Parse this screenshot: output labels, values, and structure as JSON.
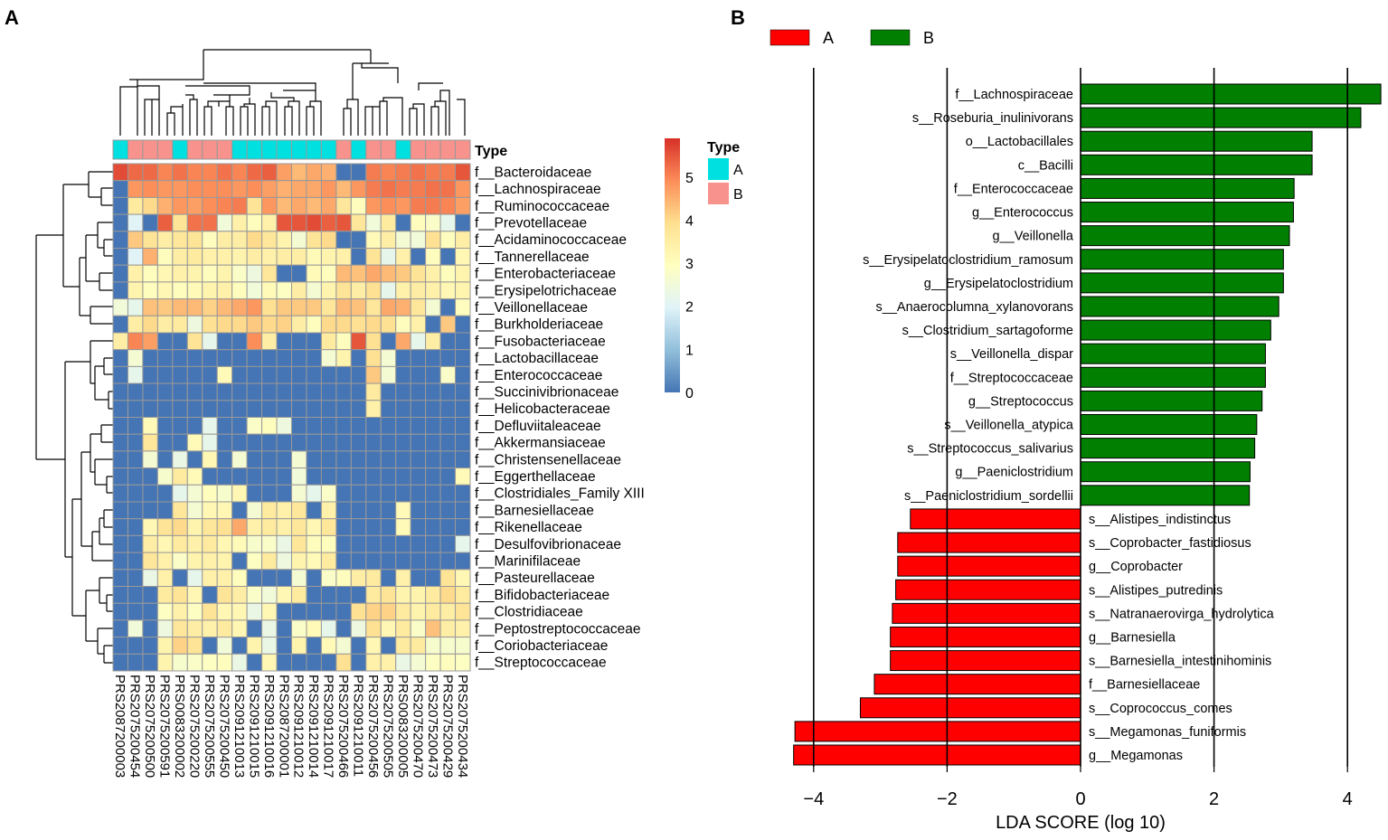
{
  "panel_labels": {
    "a": "A",
    "b": "B"
  },
  "chart_data": [
    {
      "type": "heatmap",
      "annotation_label": "Type",
      "legend": {
        "title": "Type",
        "items": [
          {
            "label": "A",
            "color": "#00e0e0"
          },
          {
            "label": "B",
            "color": "#f8928c"
          }
        ]
      },
      "colorbar_ticks": [
        "0",
        "1",
        "2",
        "3",
        "4",
        "5"
      ],
      "value_range": [
        0,
        5.9
      ],
      "colors": [
        "#4575b4",
        "#91bfdb",
        "#e0f3f8",
        "#ffffbf",
        "#fee090",
        "#fc8d59",
        "#d73027"
      ],
      "samples": [
        "PRS2087200003",
        "PRS2075200454",
        "PRS2075200500",
        "PRS2075200591",
        "PRS0083200002",
        "PRS2075200220",
        "PRS2075200555",
        "PRS2075200450",
        "PRS2091210013",
        "PRS2091210015",
        "PRS2091210016",
        "PRS2087200001",
        "PRS2091210012",
        "PRS2091210014",
        "PRS2091210017",
        "PRS2075200466",
        "PRS2091210011",
        "PRS2075200456",
        "PRS2075200505",
        "PRS0083200005",
        "PRS2075200470",
        "PRS2075200473",
        "PRS2075200429",
        "PRS2075200434"
      ],
      "types": [
        "A",
        "B",
        "B",
        "B",
        "A",
        "B",
        "B",
        "B",
        "A",
        "A",
        "A",
        "A",
        "A",
        "A",
        "A",
        "B",
        "A",
        "B",
        "B",
        "A",
        "B",
        "B",
        "B",
        "B"
      ],
      "taxa": [
        "f__Bacteroidaceae",
        "f__Lachnospiraceae",
        "f__Ruminococcaceae",
        "f__Prevotellaceae",
        "f__Acidaminococcaceae",
        "f__Tannerellaceae",
        "f__Enterobacteriaceae",
        "f__Erysipelotrichaceae",
        "f__Veillonellaceae",
        "f__Burkholderiaceae",
        "f__Fusobacteriaceae",
        "f__Lactobacillaceae",
        "f__Enterococcaceae",
        "f__Succinivibrionaceae",
        "f__Helicobacteraceae",
        "f__Defluviitaleaceae",
        "f__Akkermansiaceae",
        "f__Christensenellaceae",
        "f__Eggerthellaceae",
        "f__Clostridiales_Family XIII",
        "f__Barnesiellaceae",
        "f__Rikenellaceae",
        "f__Desulfovibrionaceae",
        "f__Marinifilaceae",
        "f__Pasteurellaceae",
        "f__Bifidobacteriaceae",
        "f__Clostridiaceae",
        "f__Peptostreptococcaceae",
        "f__Coriobacteriaceae",
        "f__Streptococcaceae"
      ],
      "values": [
        [
          5.6,
          5.3,
          5.3,
          5,
          5.2,
          5,
          5,
          5.2,
          5,
          5.3,
          5.4,
          4.7,
          4.4,
          4.6,
          4.5,
          0,
          0,
          5.1,
          5,
          5.1,
          5.2,
          5.1,
          5.1,
          5.5
        ],
        [
          0,
          4.8,
          4.9,
          4.8,
          4.8,
          4.9,
          4.9,
          4.9,
          4.8,
          4.9,
          4.7,
          4.5,
          4.6,
          4.6,
          4.8,
          4.4,
          4.8,
          5.1,
          5.2,
          5.1,
          5.1,
          5.2,
          5.2,
          4.8
        ],
        [
          0,
          3.6,
          4,
          4.5,
          4.8,
          4.7,
          4.9,
          5,
          5.1,
          3.8,
          4.8,
          4.4,
          4.6,
          4.4,
          4.6,
          3.7,
          3,
          4.8,
          4.9,
          4.8,
          5.1,
          5.1,
          5,
          4.7
        ],
        [
          0,
          2,
          0,
          5.4,
          3.8,
          5.2,
          5.2,
          2.5,
          3.4,
          3,
          3.4,
          5.5,
          5.5,
          5.6,
          5.4,
          5.5,
          3.7,
          2.5,
          3.6,
          0,
          3,
          2.8,
          2.2,
          0
        ],
        [
          0,
          4.2,
          3.8,
          3.5,
          3.7,
          3.8,
          3,
          3.5,
          3.5,
          4,
          3.7,
          3.3,
          2.6,
          3.8,
          4,
          0,
          0,
          3.1,
          3.5,
          2.6,
          2.5,
          3.9,
          3,
          3.5
        ],
        [
          0,
          2,
          4.5,
          3,
          3.5,
          3.6,
          3.4,
          3.4,
          3.3,
          3.5,
          3.4,
          3.5,
          3.5,
          3.1,
          3.3,
          3.4,
          0,
          3.8,
          2.2,
          3.4,
          0,
          3,
          0,
          3.2
        ],
        [
          0,
          3.4,
          3,
          3.2,
          3.4,
          3.3,
          3,
          3.3,
          2.8,
          2.4,
          3.7,
          0,
          0,
          3.1,
          3,
          4.4,
          4.3,
          4.6,
          4.4,
          4.2,
          3.8,
          3.4,
          3,
          3.3
        ],
        [
          0,
          3.3,
          3,
          3.2,
          3,
          3.1,
          3.3,
          3.4,
          3,
          2.5,
          3.1,
          2.9,
          3.5,
          2.6,
          3.3,
          3.8,
          3.5,
          3.9,
          2.2,
          3.4,
          3.5,
          3.4,
          3.2,
          3.3
        ],
        [
          2.5,
          2.2,
          4.3,
          4.2,
          4.4,
          4.4,
          4.1,
          4.4,
          4.6,
          4.8,
          3.9,
          4.2,
          4.2,
          4.2,
          3.7,
          4.4,
          4.3,
          3.7,
          4.6,
          4.5,
          3.7,
          2.6,
          0,
          3
        ],
        [
          0,
          3.5,
          4,
          3.5,
          3.6,
          2.4,
          3.9,
          4,
          4,
          4.2,
          4,
          4.1,
          3.5,
          3,
          4,
          4,
          3.9,
          4,
          3.9,
          3,
          3.4,
          0,
          4.2,
          0
        ],
        [
          3.5,
          5,
          4.7,
          0,
          0,
          3.8,
          2.2,
          0,
          0,
          4.9,
          3.5,
          0,
          0,
          0,
          3.6,
          3,
          5.5,
          3.9,
          0,
          4.6,
          2.2,
          3.5,
          0,
          0
        ],
        [
          0,
          2.6,
          0,
          0,
          0,
          0,
          0,
          0,
          0,
          0,
          0,
          0,
          0,
          0,
          2.6,
          3.3,
          0,
          3.9,
          2.6,
          0,
          0,
          0,
          0,
          0
        ],
        [
          0,
          2.2,
          0,
          0,
          0,
          0,
          0,
          3.1,
          0,
          0,
          0,
          0,
          0,
          0,
          0,
          0,
          0,
          4.2,
          2.6,
          0,
          0,
          0,
          2.8,
          0
        ],
        [
          0,
          0,
          0,
          0,
          0,
          0,
          0,
          0,
          0,
          0,
          0,
          0,
          0,
          0,
          0,
          0,
          0,
          3.6,
          0,
          0,
          0,
          0,
          0,
          0
        ],
        [
          0,
          0,
          0,
          0,
          0,
          0,
          0,
          0,
          0,
          0,
          0,
          0,
          0,
          0,
          0,
          0,
          0,
          3.4,
          0,
          0,
          0,
          0,
          0,
          0
        ],
        [
          0,
          0,
          3.1,
          0,
          0,
          0,
          2.2,
          0,
          0,
          2.8,
          3,
          2.4,
          0,
          0,
          0,
          0,
          0,
          0,
          0,
          0,
          0,
          0,
          0,
          0
        ],
        [
          0,
          0,
          3.7,
          0,
          0,
          3.1,
          2.2,
          0,
          0,
          0,
          0,
          0,
          0,
          0,
          0,
          0,
          0,
          0,
          0,
          0,
          0,
          0,
          0,
          0
        ],
        [
          0,
          0,
          2.6,
          0,
          2.3,
          0,
          3.2,
          0,
          2.6,
          0,
          0,
          0,
          2.6,
          0,
          0,
          0,
          0,
          0,
          0,
          0,
          0,
          0,
          0,
          0
        ],
        [
          0,
          0,
          0,
          2.7,
          3.6,
          3.1,
          0,
          0,
          0,
          0,
          0,
          0,
          2.5,
          0,
          0,
          0,
          0,
          0,
          0,
          0,
          0,
          0,
          0,
          3.1
        ],
        [
          0,
          0,
          0,
          0,
          2.2,
          2.6,
          3,
          2.7,
          3.2,
          0,
          0,
          0,
          2.6,
          2.2,
          2.8,
          0,
          0,
          0,
          0,
          0,
          0,
          0,
          0,
          0
        ],
        [
          0,
          0,
          0,
          0,
          3.7,
          2.6,
          3.2,
          3.2,
          0,
          2.6,
          3.6,
          3.4,
          3.7,
          0,
          3.4,
          0,
          0,
          0,
          0,
          3.1,
          0,
          0,
          0,
          0
        ],
        [
          0,
          0,
          3.2,
          3.8,
          4,
          3.3,
          3.7,
          3.9,
          4.6,
          3.4,
          3.6,
          3.4,
          3.7,
          3.2,
          3.7,
          0,
          0,
          0,
          0,
          3.1,
          0,
          0,
          0,
          0
        ],
        [
          0,
          0,
          3.5,
          3.2,
          3.6,
          3.4,
          3.6,
          3.2,
          3.1,
          2.7,
          2.8,
          2.3,
          3.7,
          3,
          3,
          0,
          0,
          0,
          0,
          0,
          0,
          0,
          0,
          2.2
        ],
        [
          0,
          0,
          3.7,
          3.4,
          2.8,
          3.3,
          3.4,
          3.3,
          0,
          2.9,
          3.6,
          2.4,
          3.3,
          3.1,
          3.6,
          0,
          0,
          0,
          0,
          0,
          0,
          0,
          0,
          0
        ],
        [
          0,
          0,
          2.3,
          3.4,
          0,
          2.2,
          3.4,
          3.4,
          3,
          0,
          0,
          0,
          2.6,
          0,
          2.8,
          3,
          3.5,
          3.6,
          0,
          3.4,
          0,
          0,
          3.8,
          3.2
        ],
        [
          0,
          0,
          0,
          3.6,
          3.8,
          3.2,
          0,
          3.8,
          3.5,
          2.8,
          2.5,
          3.2,
          3.6,
          0,
          0,
          0,
          0,
          3.6,
          3.8,
          3.3,
          3.3,
          3.6,
          4,
          3.6
        ],
        [
          0,
          0,
          0,
          2.9,
          3.4,
          2.9,
          3.8,
          3.2,
          3.2,
          2.3,
          3.2,
          0,
          0,
          0,
          0,
          0,
          3.9,
          4.1,
          4.1,
          3.6,
          3.3,
          3.6,
          3.5,
          3.8
        ],
        [
          0,
          2.5,
          0,
          2.4,
          3.7,
          3.5,
          3.4,
          3.6,
          3.2,
          0,
          2.3,
          0,
          2.8,
          3.1,
          2.2,
          0,
          2.4,
          3.9,
          3.2,
          3.6,
          2.8,
          4.3,
          3.5,
          3.4
        ],
        [
          0,
          0,
          0,
          3.3,
          4.1,
          3.8,
          0,
          2.5,
          0,
          3.3,
          2.3,
          0,
          3.3,
          0,
          3.1,
          2.6,
          0,
          3.2,
          0,
          3.6,
          3.6,
          2.7,
          2.7,
          2.7
        ],
        [
          0,
          0,
          0,
          3.3,
          2.7,
          2.8,
          2.9,
          3,
          2.3,
          0,
          3.2,
          0,
          0,
          0,
          0,
          3.9,
          0,
          3.4,
          3.4,
          2.3,
          2.6,
          2.9,
          3,
          2.9
        ]
      ]
    },
    {
      "type": "bar",
      "orientation": "horizontal",
      "xlabel": "LDA SCORE (log 10)",
      "xlim": [
        -4.3,
        4.55
      ],
      "xticks": [
        {
          "value": -4,
          "label": "−4"
        },
        {
          "value": -2,
          "label": "−2"
        },
        {
          "value": 0,
          "label": "0"
        },
        {
          "value": 2,
          "label": "2"
        },
        {
          "value": 4,
          "label": "4"
        }
      ],
      "grid": "vertical",
      "legend": {
        "placement": "top-left",
        "items": [
          {
            "label": "A",
            "color": "#ff0000"
          },
          {
            "label": "B",
            "color": "#007f00"
          }
        ]
      },
      "bars": [
        {
          "label": "f__Lachnospiraceae",
          "value": 4.5,
          "group": "B"
        },
        {
          "label": "s__Roseburia_inulinivorans",
          "value": 4.2,
          "group": "B"
        },
        {
          "label": "o__Lactobacillales",
          "value": 3.47,
          "group": "B"
        },
        {
          "label": "c__Bacilli",
          "value": 3.47,
          "group": "B"
        },
        {
          "label": "f__Enterococcaceae",
          "value": 3.2,
          "group": "B"
        },
        {
          "label": "g__Enterococcus",
          "value": 3.19,
          "group": "B"
        },
        {
          "label": "g__Veillonella",
          "value": 3.13,
          "group": "B"
        },
        {
          "label": "s__Erysipelatoclostridium_ramosum",
          "value": 3.04,
          "group": "B"
        },
        {
          "label": "g__Erysipelatoclostridium",
          "value": 3.04,
          "group": "B"
        },
        {
          "label": "s__Anaerocolumna_xylanovorans",
          "value": 2.97,
          "group": "B"
        },
        {
          "label": "s__Clostridium_sartagoforme",
          "value": 2.85,
          "group": "B"
        },
        {
          "label": "s__Veillonella_dispar",
          "value": 2.77,
          "group": "B"
        },
        {
          "label": "f__Streptococcaceae",
          "value": 2.77,
          "group": "B"
        },
        {
          "label": "g__Streptococcus",
          "value": 2.72,
          "group": "B"
        },
        {
          "label": "s__Veillonella_atypica",
          "value": 2.64,
          "group": "B"
        },
        {
          "label": "s__Streptococcus_salivarius",
          "value": 2.61,
          "group": "B"
        },
        {
          "label": "g__Paeniclostridium",
          "value": 2.54,
          "group": "B"
        },
        {
          "label": "s__Paeniclostridium_sordellii",
          "value": 2.53,
          "group": "B"
        },
        {
          "label": "s__Alistipes_indistinctus",
          "value": -2.55,
          "group": "A"
        },
        {
          "label": "s__Coprobacter_fastidiosus",
          "value": -2.74,
          "group": "A"
        },
        {
          "label": "g__Coprobacter",
          "value": -2.74,
          "group": "A"
        },
        {
          "label": "s__Alistipes_putredinis",
          "value": -2.77,
          "group": "A"
        },
        {
          "label": "s__Natranaerovirga_hydrolytica",
          "value": -2.82,
          "group": "A"
        },
        {
          "label": "g__Barnesiella",
          "value": -2.85,
          "group": "A"
        },
        {
          "label": "s__Barnesiella_intestinihominis",
          "value": -2.85,
          "group": "A"
        },
        {
          "label": "f__Barnesiellaceae",
          "value": -3.09,
          "group": "A"
        },
        {
          "label": "s__Coprococcus_comes",
          "value": -3.3,
          "group": "A"
        },
        {
          "label": "s__Megamonas_funiformis",
          "value": -4.28,
          "group": "A"
        },
        {
          "label": "g__Megamonas",
          "value": -4.3,
          "group": "A"
        }
      ]
    }
  ]
}
